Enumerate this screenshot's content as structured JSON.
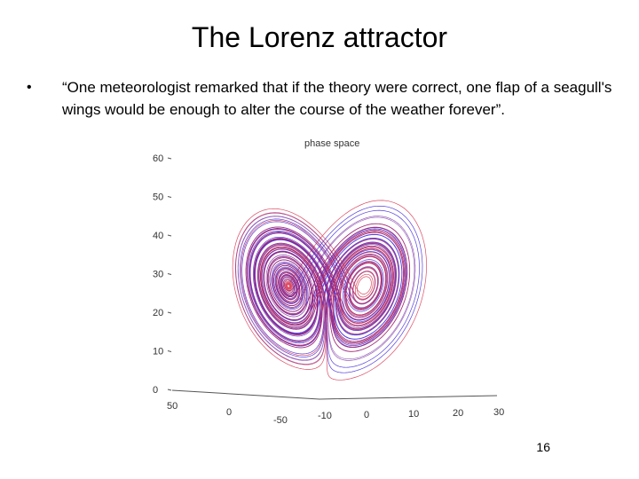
{
  "slide": {
    "title": "The Lorenz attractor",
    "bullet_marker": "•",
    "bullet_text": "“One meteorologist remarked that if the theory were correct, one flap of a seagull's wings would be enough to alter the course of the weather forever”.",
    "page_number": "16"
  },
  "figure": {
    "title": "phase space",
    "z_ticks": [
      "60",
      "50",
      "40",
      "30",
      "20",
      "10",
      "0"
    ],
    "x_ticks": [
      "50",
      "0",
      "-50",
      "-10",
      "0",
      "10",
      "20",
      "30"
    ],
    "colors": {
      "trajectory_a": "#3a1fd6",
      "trajectory_b": "#d3213f",
      "mixed": "#6a1a9a",
      "axis": "#555555"
    }
  }
}
